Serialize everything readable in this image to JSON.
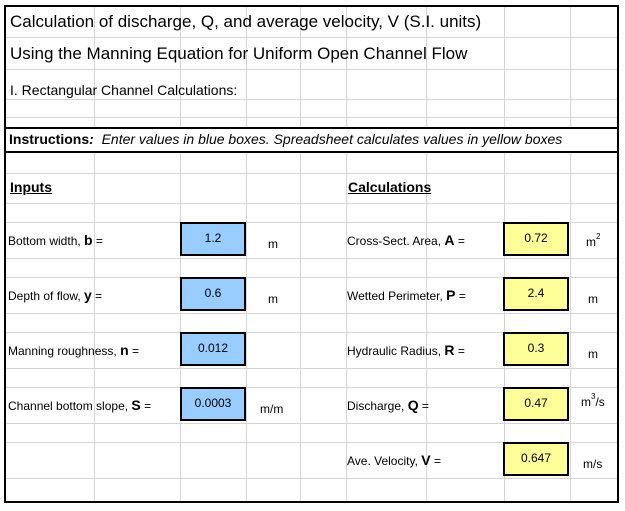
{
  "title": "Calculation of discharge, Q, and average velocity, V  (S.I. units)",
  "subtitle": "Using the Manning Equation for Uniform Open Channel Flow",
  "section": "I. Rectangular Channel Calculations:",
  "instructions": {
    "lead": "Instructions",
    "colon": ":",
    "text": "Enter values in blue boxes.  Spreadsheet calculates values in yellow boxes"
  },
  "inputs": {
    "heading": "Inputs",
    "items": [
      {
        "label": "Bottom width, ",
        "symbol": "b",
        "eq": " =",
        "value": "1.2",
        "unit": "m"
      },
      {
        "label": "Depth of flow, ",
        "symbol": "y",
        "eq": " =",
        "value": "0.6",
        "unit": "m"
      },
      {
        "label": "Manning roughness, ",
        "symbol": "n",
        "eq": " =",
        "value": "0.012",
        "unit": ""
      },
      {
        "label": "Channel bottom slope, ",
        "symbol": "S",
        "eq": " =",
        "value": "0.0003",
        "unit": "m/m"
      }
    ]
  },
  "calculations": {
    "heading": "Calculations",
    "items": [
      {
        "label": "Cross-Sect. Area, ",
        "symbol": "A",
        "eq": " =",
        "value": "0.72",
        "unit_base": "m",
        "unit_sup": "2",
        "unit_tail": ""
      },
      {
        "label": "Wetted Perimeter, ",
        "symbol": "P",
        "eq": " =",
        "value": "2.4",
        "unit_base": "m",
        "unit_sup": "",
        "unit_tail": ""
      },
      {
        "label": "Hydraulic Radius, ",
        "symbol": "R",
        "eq": " =",
        "value": "0.3",
        "unit_base": "m",
        "unit_sup": "",
        "unit_tail": ""
      },
      {
        "label": "Discharge, ",
        "symbol": "Q",
        "eq": " =",
        "value": "0.47",
        "unit_base": "m",
        "unit_sup": "3",
        "unit_tail": "/s"
      },
      {
        "label": "Ave. Velocity, ",
        "symbol": "V",
        "eq": " =",
        "value": "0.647",
        "unit_base": "m/s",
        "unit_sup": "",
        "unit_tail": ""
      }
    ]
  },
  "colors": {
    "input_fill": "#99ccff",
    "output_fill": "#ffff99",
    "grid": "#d4d4d4"
  }
}
